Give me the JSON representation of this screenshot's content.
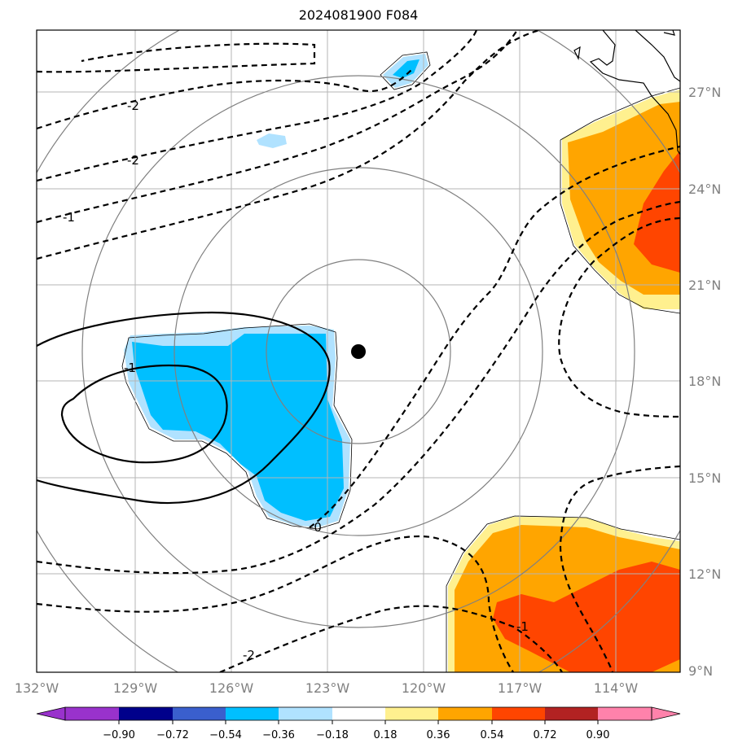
{
  "title": "2024081900 F084",
  "lon_labels": [
    "132°W",
    "129°W",
    "126°W",
    "123°W",
    "120°W",
    "117°W",
    "114°W"
  ],
  "lat_labels": [
    "27°N",
    "24°N",
    "21°N",
    "18°N",
    "15°N",
    "12°N",
    "9°N"
  ],
  "colorbar": {
    "tick_labels": [
      "−0.90",
      "−0.72",
      "−0.54",
      "−0.36",
      "−0.18",
      "0.18",
      "0.36",
      "0.54",
      "0.72",
      "0.90"
    ],
    "colors": [
      "#9932cc",
      "#00008b",
      "#3a5fcd",
      "#00bfff",
      "#b0e2ff",
      "#ffffff",
      "#fff08f",
      "#ffa500",
      "#ff4500",
      "#b22222",
      "#ff82ab"
    ]
  },
  "contour_labels": [
    "-2",
    "-2",
    "-1",
    "-1",
    "-0",
    "-1",
    "-2"
  ],
  "colors": {
    "grid": "#b5b5b5",
    "rings": "#808080",
    "center_marker": "#000000"
  }
}
